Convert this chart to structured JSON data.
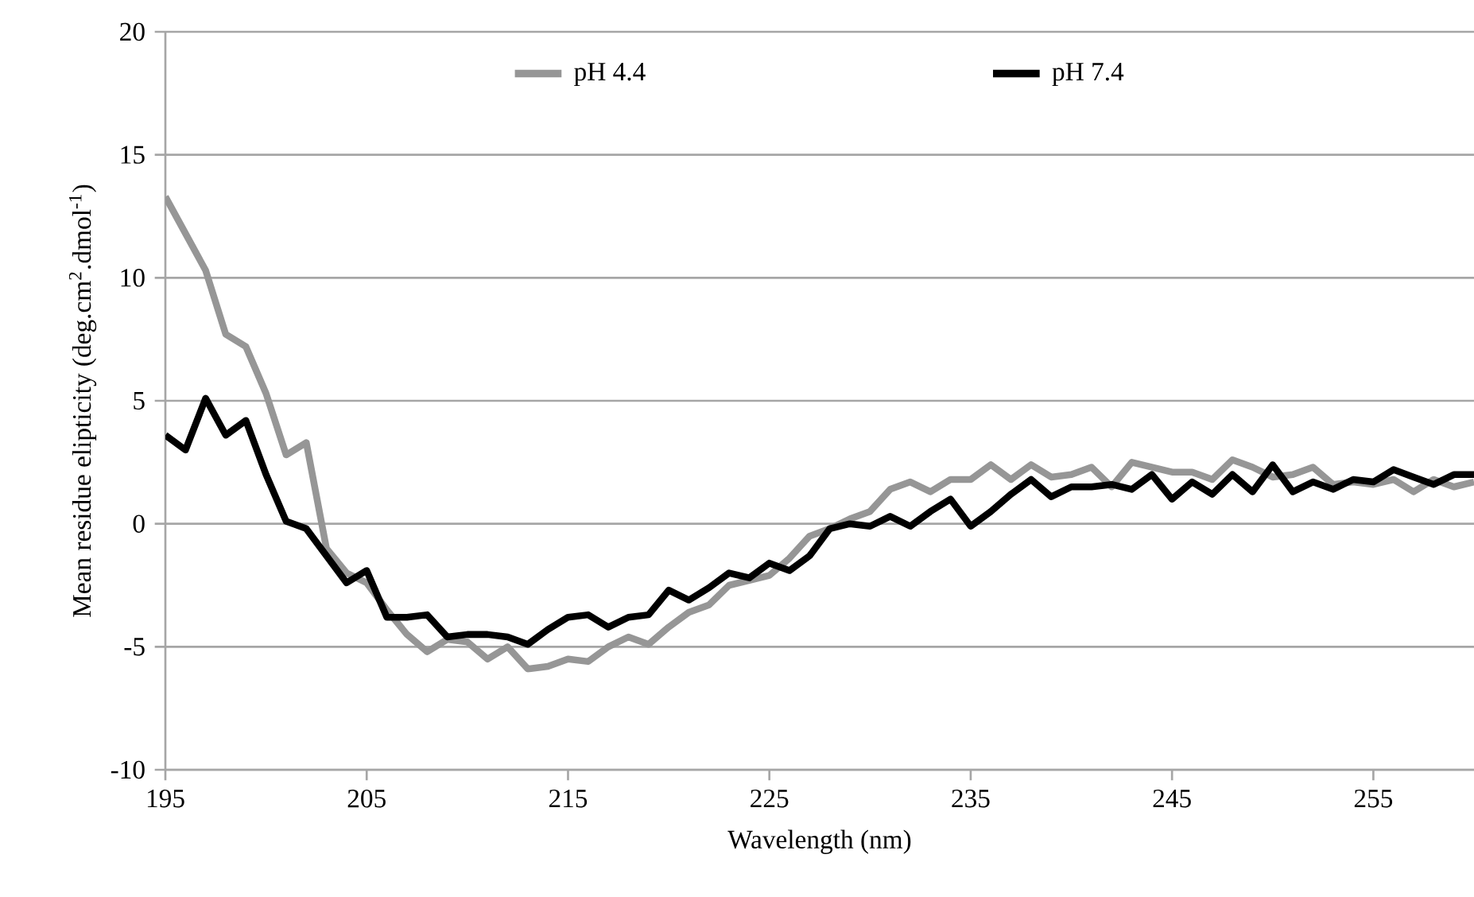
{
  "chart_data": {
    "type": "line",
    "xlabel": "Wavelength (nm)",
    "ylabel": "Mean residue elipticity (deg.cm$^{2}$.dmol$^{-1}$)",
    "x": [
      195,
      196,
      197,
      198,
      199,
      200,
      201,
      202,
      203,
      204,
      205,
      206,
      207,
      208,
      209,
      210,
      211,
      212,
      213,
      214,
      215,
      216,
      217,
      218,
      219,
      220,
      221,
      222,
      223,
      224,
      225,
      226,
      227,
      228,
      229,
      230,
      231,
      232,
      233,
      234,
      235,
      236,
      237,
      238,
      239,
      240,
      241,
      242,
      243,
      244,
      245,
      246,
      247,
      248,
      249,
      250,
      251,
      252,
      253,
      254,
      255,
      256,
      257,
      258,
      259,
      260
    ],
    "series": [
      {
        "name": "pH 4.4",
        "color": "#969696",
        "values": [
          13.3,
          11.8,
          10.3,
          7.7,
          7.2,
          5.3,
          2.8,
          3.3,
          -1.0,
          -2.0,
          -2.4,
          -3.5,
          -4.5,
          -5.2,
          -4.7,
          -4.8,
          -5.5,
          -5.0,
          -5.9,
          -5.8,
          -5.5,
          -5.6,
          -5.0,
          -4.6,
          -4.9,
          -4.2,
          -3.6,
          -3.3,
          -2.5,
          -2.3,
          -2.1,
          -1.4,
          -0.5,
          -0.2,
          0.2,
          0.5,
          1.4,
          1.7,
          1.3,
          1.8,
          1.8,
          2.4,
          1.8,
          2.4,
          1.9,
          2.0,
          2.3,
          1.5,
          2.5,
          2.3,
          2.1,
          2.1,
          1.8,
          2.6,
          2.3,
          1.9,
          2.0,
          2.3,
          1.6,
          1.7,
          1.6,
          1.8,
          1.3,
          1.8,
          1.5,
          1.7
        ]
      },
      {
        "name": "pH 7.4",
        "color": "#000000",
        "values": [
          3.6,
          3.0,
          5.1,
          3.6,
          4.2,
          2.0,
          0.1,
          -0.2,
          -1.3,
          -2.4,
          -1.9,
          -3.8,
          -3.8,
          -3.7,
          -4.6,
          -4.5,
          -4.5,
          -4.6,
          -4.9,
          -4.3,
          -3.8,
          -3.7,
          -4.2,
          -3.8,
          -3.7,
          -2.7,
          -3.1,
          -2.6,
          -2.0,
          -2.2,
          -1.6,
          -1.9,
          -1.3,
          -0.2,
          0.0,
          -0.1,
          0.3,
          -0.1,
          0.5,
          1.0,
          -0.1,
          0.5,
          1.2,
          1.8,
          1.1,
          1.5,
          1.5,
          1.6,
          1.4,
          2.0,
          1.0,
          1.7,
          1.2,
          2.0,
          1.3,
          2.4,
          1.3,
          1.7,
          1.4,
          1.8,
          1.7,
          2.2,
          1.9,
          1.6,
          2.0,
          2.0
        ]
      }
    ],
    "xlim": [
      195,
      260
    ],
    "xticks": [
      195,
      205,
      215,
      225,
      235,
      245,
      255
    ],
    "ylim": [
      -10,
      20
    ],
    "yticks": [
      -10,
      -5,
      0,
      5,
      10,
      15,
      20
    ],
    "grid": "y",
    "legend": "top",
    "marker": "none",
    "line_style": "solid"
  }
}
